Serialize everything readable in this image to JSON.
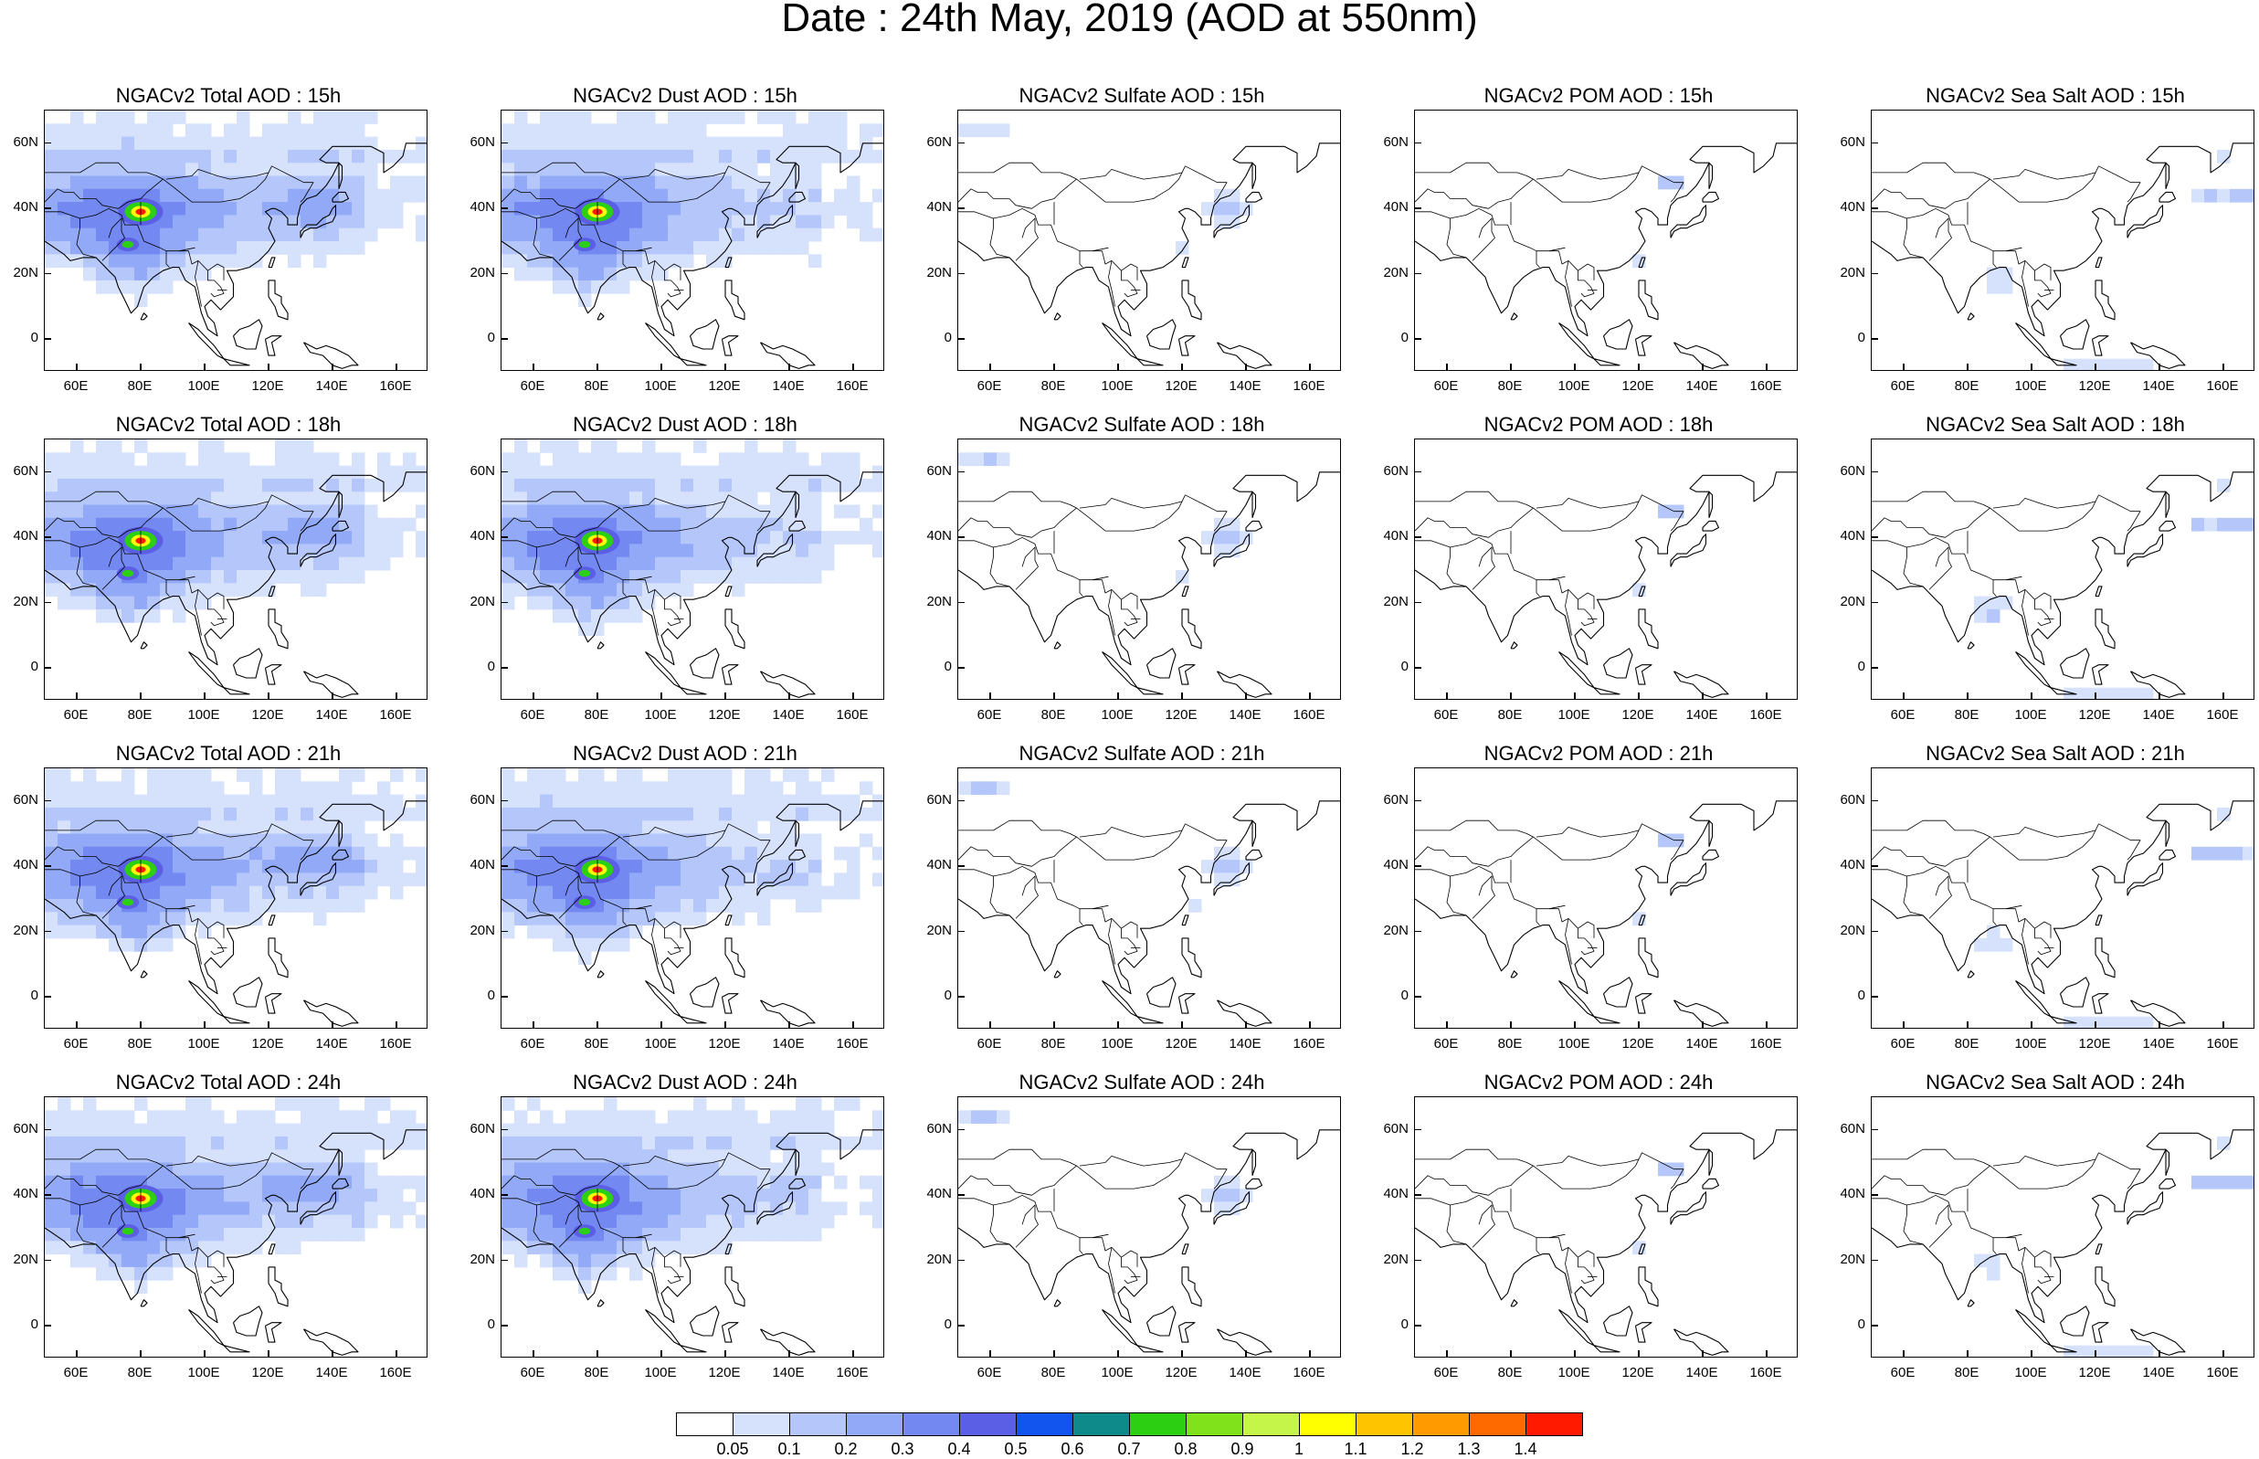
{
  "figure_title": "Date : 24th May, 2019 (AOD at 550nm)",
  "map_axes": {
    "lat_ticks": [
      "60N",
      "40N",
      "20N",
      "0"
    ],
    "lon_ticks": [
      "60E",
      "80E",
      "100E",
      "120E",
      "140E",
      "160E"
    ],
    "lon_range_deg_E": [
      50,
      170
    ],
    "lat_range_deg": [
      -10,
      70
    ]
  },
  "panel_titles": [
    [
      "NGACv2 Total AOD : 15h",
      "NGACv2 Dust AOD : 15h",
      "NGACv2 Sulfate AOD : 15h",
      "NGACv2 POM AOD : 15h",
      "NGACv2 Sea Salt AOD : 15h"
    ],
    [
      "NGACv2 Total AOD : 18h",
      "NGACv2 Dust AOD : 18h",
      "NGACv2 Sulfate AOD : 18h",
      "NGACv2 POM AOD : 18h",
      "NGACv2 Sea Salt AOD : 18h"
    ],
    [
      "NGACv2 Total AOD : 21h",
      "NGACv2 Dust AOD : 21h",
      "NGACv2 Sulfate AOD : 21h",
      "NGACv2 POM AOD : 21h",
      "NGACv2 Sea Salt AOD : 21h"
    ],
    [
      "NGACv2 Total AOD : 24h",
      "NGACv2 Dust AOD : 24h",
      "NGACv2 Sulfate AOD : 24h",
      "NGACv2 POM AOD : 24h",
      "NGACv2 Sea Salt  AOD : 24h"
    ]
  ],
  "colorbar": {
    "labels": [
      "0.05",
      "0.1",
      "0.2",
      "0.3",
      "0.4",
      "0.5",
      "0.6",
      "0.7",
      "0.8",
      "0.9",
      "1",
      "1.1",
      "1.2",
      "1.3",
      "1.4"
    ],
    "colors": [
      "#ffffff",
      "#d6e1fb",
      "#b4c6fa",
      "#91a9f6",
      "#7388f0",
      "#5b5fe6",
      "#1155ee",
      "#0f8a8a",
      "#2ccf11",
      "#7fe21a",
      "#c6f54a",
      "#ffff00",
      "#ffc400",
      "#ff9a00",
      "#ff6a00",
      "#ff1a00"
    ]
  },
  "species_colors": {
    "total": [
      "#d6e1fb",
      "#b4c6fa",
      "#91a9f6",
      "#7388f0"
    ],
    "dust": [
      "#d6e1fb",
      "#b4c6fa",
      "#91a9f6",
      "#7388f0"
    ],
    "sulfate": [
      "#d6e1fb",
      "#b4c6fa"
    ],
    "pom": [
      "#d6e1fb",
      "#b4c6fa"
    ],
    "seasalt": [
      "#d6e1fb",
      "#b4c6fa"
    ]
  },
  "hotspot_colors": {
    "core": "#ff1a00",
    "ring1": "#ffff00",
    "ring2": "#2ccf11",
    "ring3": "#5b5fe6"
  }
}
